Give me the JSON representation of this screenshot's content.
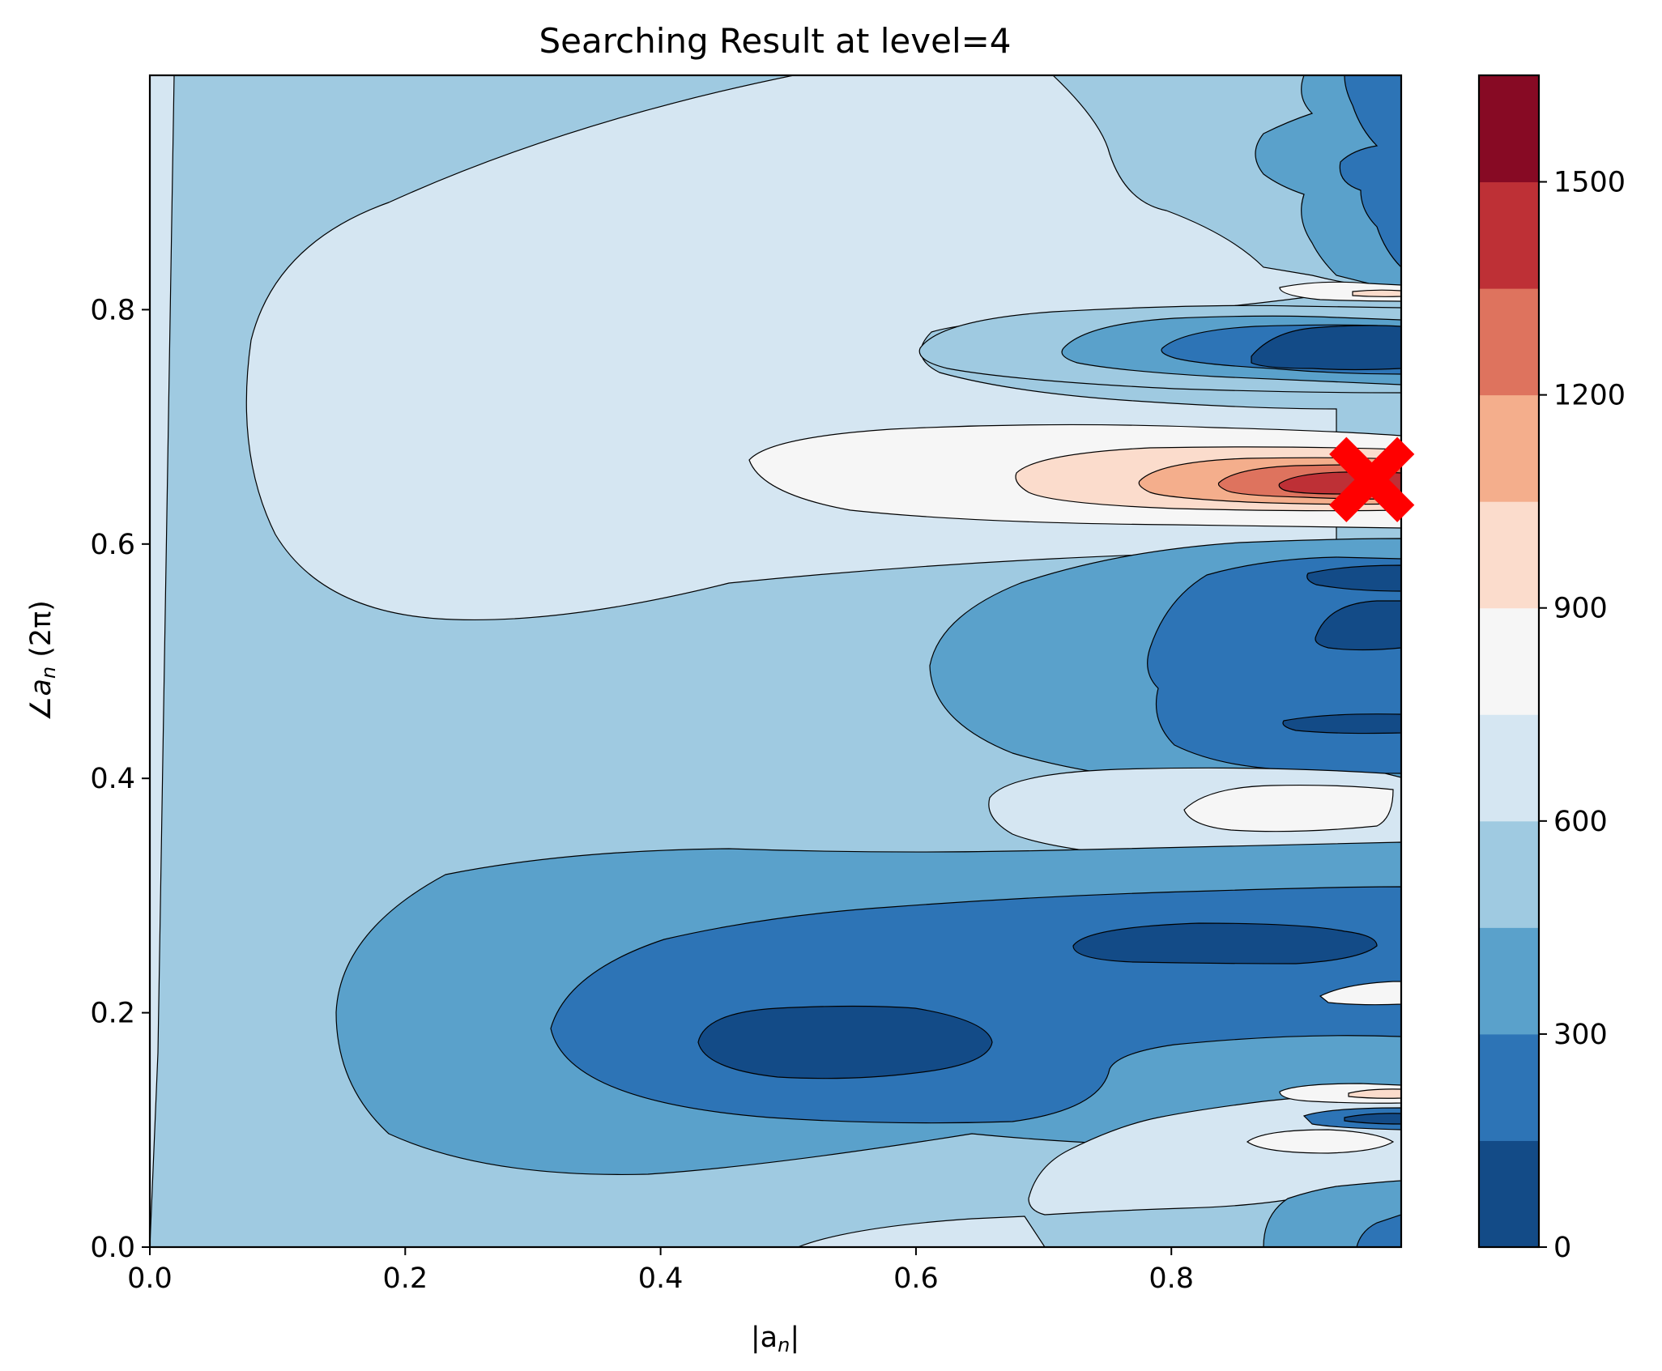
{
  "chart_data": {
    "type": "contourf",
    "title": "Searching Result at level=4",
    "xlabel": "|a",
    "xlabel_sub": "n",
    "xlabel_end": "|",
    "ylabel": "∠a",
    "ylabel_sub": "n",
    "ylabel_end": "  (2π)",
    "xlim": [
      0.0,
      0.98
    ],
    "ylim": [
      0.0,
      1.0
    ],
    "x_ticks": [
      "0.0",
      "0.2",
      "0.4",
      "0.6",
      "0.8"
    ],
    "y_ticks": [
      "0.0",
      "0.2",
      "0.4",
      "0.6",
      "0.8"
    ],
    "colorbar": {
      "ticks": [
        "0",
        "300",
        "600",
        "900",
        "1200",
        "1500"
      ],
      "range": [
        0,
        1650
      ],
      "levels": [
        0,
        150,
        300,
        450,
        600,
        750,
        900,
        1050,
        1200,
        1350,
        1500,
        1650
      ],
      "colors": [
        "#134b87",
        "#2d74b6",
        "#5aa1cb",
        "#9fcae1",
        "#d5e6f2",
        "#f6f6f6",
        "#fbdccc",
        "#f4ae8c",
        "#de735e",
        "#be3036",
        "#870a24"
      ]
    },
    "marker": {
      "symbol": "X",
      "color": "#ff0000",
      "x": 0.957,
      "y": 0.655
    },
    "regions": [
      {
        "name": "background",
        "band": 3
      },
      {
        "name": "left-strip",
        "band": 4
      },
      {
        "name": "upper-lobe",
        "band": 4
      },
      {
        "name": "top-right-blue",
        "band": 2
      },
      {
        "name": "top-right-dark",
        "band": 1
      },
      {
        "name": "white-streak-0.81",
        "band": 5
      },
      {
        "name": "peach-streak-0.81",
        "band": 6
      },
      {
        "name": "blob-0.76-light",
        "band": 3
      },
      {
        "name": "blob-0.76-mid",
        "band": 2
      },
      {
        "name": "blob-0.76-blue",
        "band": 1
      },
      {
        "name": "blob-0.76-darkest",
        "band": 0
      },
      {
        "name": "peak-white",
        "band": 5
      },
      {
        "name": "peak-peach",
        "band": 6
      },
      {
        "name": "peak-salmon",
        "band": 7
      },
      {
        "name": "peak-orange",
        "band": 8
      },
      {
        "name": "peak-red",
        "band": 9
      },
      {
        "name": "valley-0.5-mid",
        "band": 2
      },
      {
        "name": "valley-0.5-blue",
        "band": 1
      },
      {
        "name": "valley-0.5-dark-a",
        "band": 0
      },
      {
        "name": "valley-0.5-dark-b",
        "band": 0
      },
      {
        "name": "valley-0.5-dark-c",
        "band": 0
      },
      {
        "name": "ridge-0.38-light",
        "band": 4
      },
      {
        "name": "ridge-0.38-white",
        "band": 5
      },
      {
        "name": "valley-0.2-mid",
        "band": 2
      },
      {
        "name": "valley-0.2-blue",
        "band": 1
      },
      {
        "name": "valley-0.2-dark",
        "band": 0
      },
      {
        "name": "valley-0.26-dark",
        "band": 0
      },
      {
        "name": "bottom-light",
        "band": 4
      },
      {
        "name": "bottom-right-mid",
        "band": 2
      },
      {
        "name": "bottom-right-blue",
        "band": 1
      },
      {
        "name": "low-white-0.09",
        "band": 5
      },
      {
        "name": "low-white-0.13",
        "band": 5
      },
      {
        "name": "low-peach-0.13",
        "band": 6
      },
      {
        "name": "low-blue-0.11",
        "band": 1
      },
      {
        "name": "low-dark-0.11",
        "band": 0
      },
      {
        "name": "white-0.21",
        "band": 5
      },
      {
        "name": "bottom-center-light",
        "band": 4
      }
    ]
  }
}
